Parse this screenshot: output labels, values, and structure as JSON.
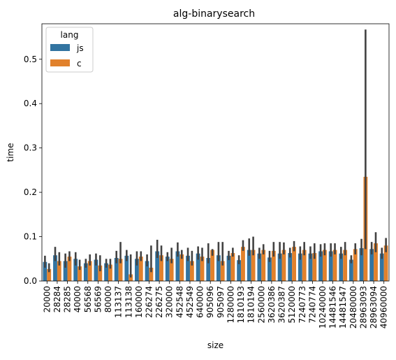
{
  "chart_data": {
    "type": "bar",
    "title": "alg-binarysearch",
    "xlabel": "size",
    "ylabel": "time",
    "ylim": [
      0,
      0.58
    ],
    "yticks": [
      0.0,
      0.1,
      0.2,
      0.3,
      0.4,
      0.5
    ],
    "ytick_labels": [
      "0.0",
      "0.1",
      "0.2",
      "0.3",
      "0.4",
      "0.5"
    ],
    "grid": false,
    "legend": {
      "title": "lang",
      "position": "top-left"
    },
    "categories": [
      "20000",
      "28284",
      "28285",
      "40000",
      "56568",
      "56569",
      "80000",
      "113137",
      "113138",
      "160000",
      "226274",
      "226275",
      "320000",
      "452548",
      "452549",
      "640000",
      "905096",
      "905097",
      "1280000",
      "1810193",
      "1810194",
      "2560000",
      "3620386",
      "3620387",
      "5120000",
      "7240773",
      "7240774",
      "10240000",
      "14481546",
      "14481547",
      "20480000",
      "28963093",
      "28963094",
      "40960000"
    ],
    "series": [
      {
        "name": "js",
        "color": "#3274a1",
        "values": [
          0.043,
          0.058,
          0.045,
          0.05,
          0.04,
          0.048,
          0.04,
          0.052,
          0.057,
          0.05,
          0.045,
          0.067,
          0.055,
          0.067,
          0.057,
          0.062,
          0.052,
          0.058,
          0.057,
          0.047,
          0.07,
          0.062,
          0.053,
          0.062,
          0.063,
          0.062,
          0.062,
          0.067,
          0.067,
          0.062,
          0.048,
          0.074,
          0.072,
          0.062
        ],
        "err_low": [
          0.03,
          0.045,
          0.03,
          0.035,
          0.03,
          0.035,
          0.03,
          0.04,
          0.045,
          0.035,
          0.033,
          0.052,
          0.045,
          0.055,
          0.045,
          0.048,
          0.04,
          0.045,
          0.047,
          0.038,
          0.057,
          0.05,
          0.043,
          0.05,
          0.053,
          0.048,
          0.05,
          0.055,
          0.055,
          0.05,
          0.04,
          0.058,
          0.06,
          0.05
        ],
        "err_high": [
          0.057,
          0.077,
          0.062,
          0.065,
          0.05,
          0.062,
          0.05,
          0.068,
          0.07,
          0.067,
          0.06,
          0.093,
          0.065,
          0.087,
          0.075,
          0.078,
          0.085,
          0.088,
          0.068,
          0.058,
          0.096,
          0.075,
          0.068,
          0.088,
          0.075,
          0.078,
          0.078,
          0.083,
          0.085,
          0.077,
          0.058,
          0.095,
          0.088,
          0.075
        ]
      },
      {
        "name": "c",
        "color": "#e1812c",
        "values": [
          0.027,
          0.045,
          0.055,
          0.033,
          0.045,
          0.035,
          0.037,
          0.05,
          0.015,
          0.055,
          0.03,
          0.058,
          0.05,
          0.06,
          0.045,
          0.055,
          0.07,
          0.045,
          0.063,
          0.077,
          0.07,
          0.07,
          0.068,
          0.07,
          0.077,
          0.07,
          0.063,
          0.07,
          0.07,
          0.07,
          0.072,
          0.235,
          0.085,
          0.08
        ],
        "err_low": [
          0.02,
          0.035,
          0.045,
          0.025,
          0.035,
          0.022,
          0.028,
          0.04,
          0.008,
          0.045,
          0.02,
          0.045,
          0.04,
          0.05,
          0.035,
          0.045,
          0.057,
          0.035,
          0.055,
          0.068,
          0.058,
          0.06,
          0.055,
          0.06,
          0.067,
          0.058,
          0.05,
          0.058,
          0.06,
          0.058,
          0.06,
          0.072,
          0.065,
          0.065
        ],
        "err_high": [
          0.04,
          0.065,
          0.067,
          0.048,
          0.06,
          0.058,
          0.05,
          0.088,
          0.06,
          0.067,
          0.08,
          0.08,
          0.075,
          0.07,
          0.068,
          0.075,
          0.072,
          0.088,
          0.075,
          0.092,
          0.1,
          0.083,
          0.088,
          0.087,
          0.09,
          0.088,
          0.085,
          0.085,
          0.085,
          0.088,
          0.085,
          0.567,
          0.11,
          0.097
        ]
      }
    ]
  }
}
